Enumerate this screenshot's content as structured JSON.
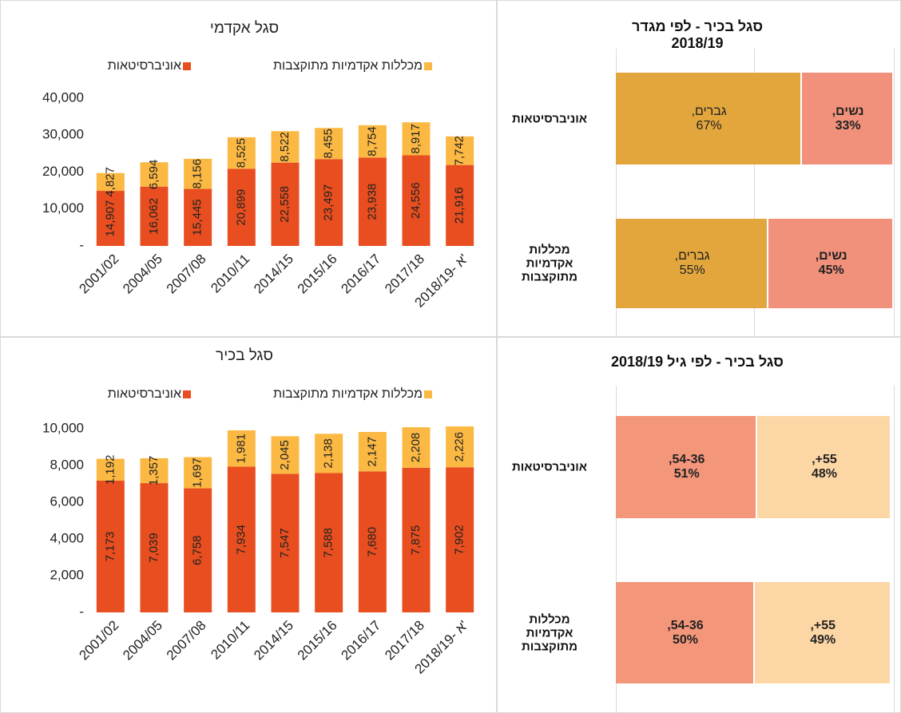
{
  "chart_data": [
    {
      "type": "bar",
      "title": "סגל אקדמי",
      "categories": [
        "2001/02",
        "2004/05",
        "2007/08",
        "2010/11",
        "2014/15",
        "2015/16",
        "2016/17",
        "2017/18",
        "2018/19- א'"
      ],
      "series": [
        {
          "name": "אוניברסיטאות",
          "color": "#e84e1f",
          "values": [
            14907,
            16062,
            15445,
            20899,
            22558,
            23497,
            23938,
            24556,
            21916
          ],
          "value_labels": [
            "14,907",
            "16,062",
            "15,445",
            "20,899",
            "22,558",
            "23,497",
            "23,938",
            "24,556",
            "21,916"
          ]
        },
        {
          "name": "מכללות אקדמיות מתוקצבות",
          "color": "#fbb843",
          "values": [
            4827,
            6594,
            8156,
            8525,
            8522,
            8455,
            8754,
            8917,
            7742
          ],
          "value_labels": [
            "4,827",
            "6,594",
            "8,156",
            "8,525",
            "8,522",
            "8,455",
            "8,754",
            "8,917",
            "7,742"
          ]
        }
      ],
      "ylim": [
        0,
        40000
      ],
      "yticks": [
        {
          "value": 0,
          "label": "-"
        },
        {
          "value": 10000,
          "label": "10,000"
        },
        {
          "value": 20000,
          "label": "20,000"
        },
        {
          "value": 30000,
          "label": "30,000"
        },
        {
          "value": 40000,
          "label": "40,000"
        }
      ]
    },
    {
      "type": "hbar",
      "title": "סגל בכיר - לפי מגדר 2018/19",
      "categories": [
        "אוניברסיטאות",
        "מכללות אקדמיות מתוקצבות"
      ],
      "series": [
        {
          "name": "גברים",
          "color": "#e2a63d",
          "values": [
            67,
            55
          ],
          "value_labels": [
            "גברים,\n67%",
            "גברים,\n55%"
          ]
        },
        {
          "name": "נשים",
          "color": "#f1917b",
          "values": [
            33,
            45
          ],
          "value_labels": [
            "נשים,\n33%",
            "נשים,\n45%"
          ]
        }
      ],
      "xlim": [
        0,
        100
      ]
    },
    {
      "type": "bar",
      "title": "סגל בכיר",
      "categories": [
        "2001/02",
        "2004/05",
        "2007/08",
        "2010/11",
        "2014/15",
        "2015/16",
        "2016/17",
        "2017/18",
        "2018/19- א'"
      ],
      "series": [
        {
          "name": "אוניברסיטאות",
          "color": "#e84e1f",
          "values": [
            7173,
            7039,
            6758,
            7934,
            7547,
            7588,
            7680,
            7875,
            7902
          ],
          "value_labels": [
            "7,173",
            "7,039",
            "6,758",
            "7,934",
            "7,547",
            "7,588",
            "7,680",
            "7,875",
            "7,902"
          ]
        },
        {
          "name": "מכללות אקדמיות מתוקצבות",
          "color": "#fbb843",
          "values": [
            1192,
            1357,
            1697,
            1981,
            2045,
            2138,
            2147,
            2208,
            2226
          ],
          "value_labels": [
            "1,192",
            "1,357",
            "1,697",
            "1,981",
            "2,045",
            "2,138",
            "2,147",
            "2,208",
            "2,226"
          ]
        }
      ],
      "ylim": [
        0,
        10000
      ],
      "yticks": [
        {
          "value": 0,
          "label": "-"
        },
        {
          "value": 2000,
          "label": "2,000"
        },
        {
          "value": 4000,
          "label": "4,000"
        },
        {
          "value": 6000,
          "label": "6,000"
        },
        {
          "value": 8000,
          "label": "8,000"
        },
        {
          "value": 10000,
          "label": "10,000"
        }
      ]
    },
    {
      "type": "hbar",
      "title": "סגל בכיר - לפי גיל 2018/19",
      "categories": [
        "אוניברסיטאות",
        "מכללות אקדמיות מתוקצבות"
      ],
      "series": [
        {
          "name": "54-36",
          "color": "#f3967a",
          "values": [
            51,
            50
          ],
          "value_labels": [
            "54-36,\n51%",
            "54-36,\n50%"
          ]
        },
        {
          "name": "55+",
          "color": "#fdd6a5",
          "values": [
            48,
            49
          ],
          "value_labels": [
            "55+,\n48%",
            "55+,\n49%"
          ]
        }
      ],
      "xlim": [
        0,
        100
      ]
    }
  ]
}
